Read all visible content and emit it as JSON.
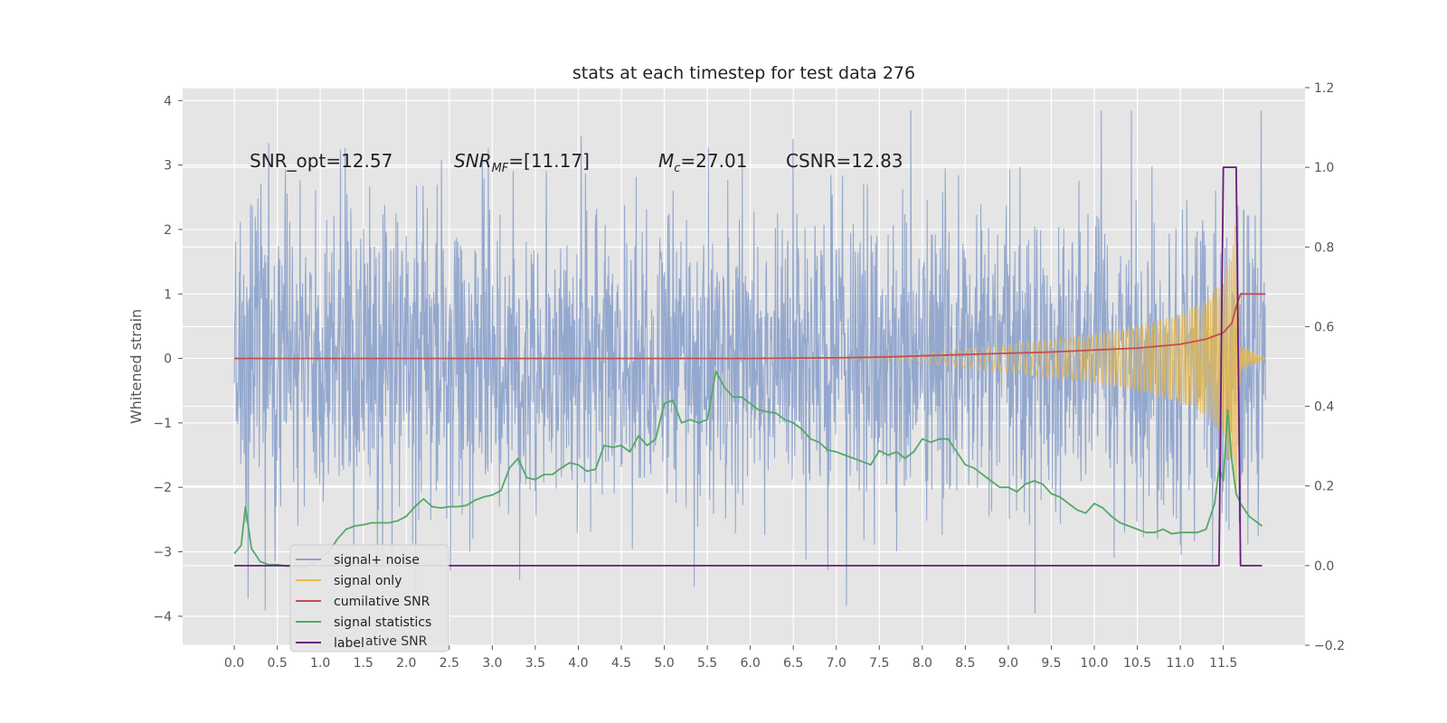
{
  "chart_data": {
    "type": "line",
    "title": "stats at each timestep for test data 276",
    "ylabel": "Whitened strain",
    "y2label": "",
    "xlim": [
      -0.6,
      12.45
    ],
    "ylim": [
      -4.45,
      4.2
    ],
    "y2lim": [
      -0.2,
      1.2
    ],
    "x_ticks": [
      0.0,
      0.5,
      1.0,
      1.5,
      2.0,
      2.5,
      3.0,
      3.5,
      4.0,
      4.5,
      5.0,
      5.5,
      6.0,
      6.5,
      7.0,
      7.5,
      8.0,
      8.5,
      9.0,
      9.5,
      10.0,
      10.5,
      11.0,
      11.5
    ],
    "x_tick_labels": [
      "0.0",
      "0.5",
      "1.0",
      "1.5",
      "2.0",
      "2.5",
      "3.0",
      "3.5",
      "4.0",
      "4.5",
      "5.0",
      "5.5",
      "6.0",
      "6.5",
      "7.0",
      "7.5",
      "8.0",
      "8.5",
      "9.0",
      "9.5",
      "10.0",
      "10.5",
      "11.0",
      "11.5"
    ],
    "y_ticks": [
      -4,
      -3,
      -2,
      -1,
      0,
      1,
      2,
      3,
      4
    ],
    "y_tick_labels": [
      "−4",
      "−3",
      "−2",
      "−1",
      "0",
      "1",
      "2",
      "3",
      "4"
    ],
    "y2_ticks": [
      -0.2,
      0.0,
      0.2,
      0.4,
      0.6,
      0.8,
      1.0,
      1.2
    ],
    "y2_tick_labels": [
      "−0.2",
      "0.0",
      "0.2",
      "0.4",
      "0.6",
      "0.8",
      "1.0",
      "1.2"
    ],
    "grid": true,
    "legend_placement": "lower-left",
    "annotations": [
      {
        "parts": [
          {
            "text": "SNR_opt=12.57",
            "italic": false
          }
        ]
      },
      {
        "parts": [
          {
            "text": "SNR",
            "italic": true
          },
          {
            "text": "MF",
            "italic": true,
            "sub": true
          },
          {
            "text": "=[11.17]",
            "italic": false
          }
        ]
      },
      {
        "parts": [
          {
            "text": "M",
            "italic": true
          },
          {
            "text": "c",
            "italic": true,
            "sub": true
          },
          {
            "text": "=27.01",
            "italic": false
          }
        ]
      },
      {
        "parts": [
          {
            "text": "CSNR=12.83",
            "italic": false
          }
        ]
      }
    ],
    "series": [
      {
        "name": "signal+ noise",
        "axis": "left",
        "color": "#8fa4cc",
        "style": "noise",
        "x_range": [
          0.0,
          11.99
        ],
        "envelope": {
          "typical_amplitude": 1.4,
          "max": 3.85,
          "min": -4.1
        }
      },
      {
        "name": "signal only",
        "axis": "left",
        "color": "#e8b84a",
        "style": "chirp",
        "x_range": [
          0.0,
          11.99
        ],
        "amplitude_points": {
          "x": [
            0.0,
            7.5,
            8.0,
            8.5,
            9.0,
            9.5,
            10.0,
            10.5,
            11.0,
            11.3,
            11.5,
            11.6,
            11.65,
            11.7,
            11.99
          ],
          "y": [
            0.0,
            0.02,
            0.08,
            0.15,
            0.22,
            0.3,
            0.38,
            0.5,
            0.7,
            0.9,
            1.25,
            1.7,
            2.2,
            0.2,
            0.0
          ]
        }
      },
      {
        "name": "cumilative SNR",
        "axis": "left",
        "color": "#c44e52",
        "x": [
          0.0,
          6.0,
          7.0,
          7.5,
          8.0,
          8.5,
          9.0,
          9.5,
          10.0,
          10.5,
          11.0,
          11.3,
          11.5,
          11.6,
          11.65,
          11.7,
          11.99
        ],
        "y": [
          0.0,
          0.0,
          0.01,
          0.02,
          0.04,
          0.06,
          0.08,
          0.1,
          0.13,
          0.16,
          0.22,
          0.3,
          0.4,
          0.55,
          0.8,
          1.0,
          1.0
        ]
      },
      {
        "name": "signal statistics",
        "axis": "left",
        "color": "#55a868",
        "x": [
          0.0,
          0.08,
          0.13,
          0.2,
          0.3,
          0.4,
          0.5,
          0.6,
          0.7,
          0.8,
          0.9,
          1.0,
          1.1,
          1.2,
          1.3,
          1.4,
          1.5,
          1.6,
          1.7,
          1.8,
          1.9,
          2.0,
          2.1,
          2.2,
          2.3,
          2.4,
          2.5,
          2.6,
          2.7,
          2.8,
          2.9,
          3.0,
          3.1,
          3.2,
          3.3,
          3.4,
          3.5,
          3.6,
          3.7,
          3.8,
          3.9,
          4.0,
          4.1,
          4.2,
          4.3,
          4.4,
          4.5,
          4.6,
          4.7,
          4.8,
          4.9,
          5.0,
          5.1,
          5.2,
          5.3,
          5.4,
          5.5,
          5.6,
          5.7,
          5.8,
          5.9,
          6.0,
          6.1,
          6.2,
          6.3,
          6.4,
          6.5,
          6.6,
          6.7,
          6.8,
          6.9,
          7.0,
          7.1,
          7.2,
          7.3,
          7.4,
          7.5,
          7.6,
          7.7,
          7.8,
          7.9,
          8.0,
          8.1,
          8.2,
          8.3,
          8.4,
          8.5,
          8.6,
          8.7,
          8.8,
          8.9,
          9.0,
          9.1,
          9.2,
          9.3,
          9.4,
          9.5,
          9.6,
          9.7,
          9.8,
          9.9,
          10.0,
          10.1,
          10.2,
          10.3,
          10.4,
          10.5,
          10.6,
          10.7,
          10.8,
          10.9,
          11.0,
          11.1,
          11.2,
          11.3,
          11.4,
          11.45,
          11.5,
          11.55,
          11.6,
          11.65,
          11.7,
          11.8,
          11.9,
          11.95
        ],
        "y": [
          -3.03,
          -2.9,
          -2.3,
          -2.95,
          -3.15,
          -3.2,
          -3.2,
          -3.22,
          -3.22,
          -3.25,
          -3.2,
          -3.1,
          -3.0,
          -2.8,
          -2.65,
          -2.6,
          -2.58,
          -2.55,
          -2.55,
          -2.55,
          -2.52,
          -2.45,
          -2.3,
          -2.18,
          -2.3,
          -2.32,
          -2.3,
          -2.3,
          -2.28,
          -2.2,
          -2.15,
          -2.12,
          -2.05,
          -1.7,
          -1.55,
          -1.85,
          -1.88,
          -1.8,
          -1.8,
          -1.7,
          -1.62,
          -1.65,
          -1.75,
          -1.72,
          -1.35,
          -1.38,
          -1.35,
          -1.45,
          -1.2,
          -1.35,
          -1.25,
          -0.7,
          -0.65,
          -1.0,
          -0.95,
          -1.0,
          -0.95,
          -0.2,
          -0.45,
          -0.6,
          -0.6,
          -0.7,
          -0.8,
          -0.83,
          -0.85,
          -0.95,
          -1.0,
          -1.1,
          -1.25,
          -1.3,
          -1.42,
          -1.45,
          -1.5,
          -1.55,
          -1.6,
          -1.65,
          -1.43,
          -1.5,
          -1.45,
          -1.55,
          -1.45,
          -1.25,
          -1.3,
          -1.25,
          -1.25,
          -1.45,
          -1.65,
          -1.7,
          -1.8,
          -1.9,
          -2.0,
          -2.0,
          -2.07,
          -1.95,
          -1.9,
          -1.95,
          -2.1,
          -2.15,
          -2.25,
          -2.35,
          -2.4,
          -2.25,
          -2.32,
          -2.45,
          -2.55,
          -2.6,
          -2.65,
          -2.7,
          -2.7,
          -2.65,
          -2.72,
          -2.7,
          -2.7,
          -2.7,
          -2.65,
          -2.25,
          -1.7,
          -1.9,
          -0.8,
          -1.6,
          -2.1,
          -2.25,
          -2.45,
          -2.55,
          -2.6
        ]
      },
      {
        "name": "label",
        "axis": "right",
        "color": "#6a1b7a",
        "x": [
          0.0,
          11.45,
          11.5,
          11.52,
          11.62,
          11.65,
          11.7,
          11.95
        ],
        "y": [
          0.0,
          0.0,
          1.0,
          1.0,
          1.0,
          1.0,
          0.0,
          0.0
        ]
      }
    ],
    "legend": {
      "entries": [
        "signal+ noise",
        "signal only",
        "cumilative SNR",
        "signal statistics",
        "label"
      ],
      "ghost_text": "cumilative SNR"
    }
  }
}
